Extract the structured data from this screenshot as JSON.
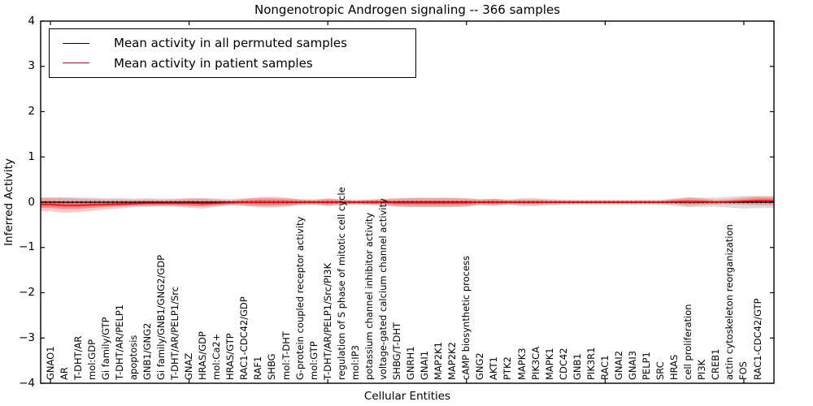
{
  "title": "Nongenotropic Androgen signaling -- 366 samples",
  "xlabel": "Cellular Entities",
  "ylabel": "Inferred Activity",
  "legend": {
    "entries": [
      {
        "label": "Mean activity in all permuted samples",
        "color": "#000000"
      },
      {
        "label": "Mean activity in patient samples",
        "color": "#ff0000"
      }
    ]
  },
  "colors": {
    "permuted_line": "#000000",
    "patient_line": "#ff0000",
    "permuted_band": "#b0b0b0",
    "patient_band": "#ff0000",
    "axis": "#000000"
  },
  "chart_data": {
    "type": "line",
    "title": "Nongenotropic Androgen signaling -- 366 samples",
    "xlabel": "Cellular Entities",
    "ylabel": "Inferred Activity",
    "ylim": [
      -4,
      4
    ],
    "yticks": [
      -4,
      -3,
      -2,
      -1,
      0,
      1,
      2,
      3,
      4
    ],
    "xtick_indices": [
      0,
      10,
      20,
      30,
      40,
      50
    ],
    "grid": false,
    "legend_position": "upper left",
    "categories": [
      "GNAO1",
      "AR",
      "T-DHT/AR",
      "mol:GDP",
      "Gi family/GTP",
      "T-DHT/AR/PELP1",
      "apoptosis",
      "GNB1/GNG2",
      "Gi family/GNB1/GNG2/GDP",
      "T-DHT/AR/PELP1/Src",
      "GNAZ",
      "HRAS/GDP",
      "mol:Ca2+",
      "HRAS/GTP",
      "RAC1-CDC42/GDP",
      "RAF1",
      "SHBG",
      "mol:T-DHT",
      "G-protein coupled receptor activity",
      "mol:GTP",
      "T-DHT/AR/PELP1/Src/PI3K",
      "regulation of S phase of mitotic cell cycle",
      "mol:IP3",
      "potassium channel inhibitor activity",
      "voltage-gated calcium channel activity",
      "SHBG/T-DHT",
      "GNRH1",
      "GNAI1",
      "MAP2K1",
      "MAP2K2",
      "cAMP biosynthetic process",
      "GNG2",
      "AKT1",
      "PTK2",
      "MAPK3",
      "PIK3CA",
      "MAPK1",
      "CDC42",
      "GNB1",
      "PIK3R1",
      "RAC1",
      "GNAI2",
      "GNAI3",
      "PELP1",
      "SRC",
      "HRAS",
      "cell proliferation",
      "PI3K",
      "CREB1",
      "actin cytoskeleton reorganization",
      "FOS",
      "RAC1-CDC42/GTP"
    ],
    "series": [
      {
        "name": "Mean activity in all permuted samples",
        "color": "#000000",
        "style": "solid-with-dots",
        "values": [
          0,
          0,
          0,
          0,
          0,
          0,
          0,
          0,
          0,
          0,
          0,
          0,
          0,
          0,
          0,
          0,
          0,
          0,
          0,
          0,
          0,
          0,
          0,
          0,
          0,
          0,
          0,
          0,
          0,
          0,
          0,
          0,
          0,
          0,
          0,
          0,
          0,
          0,
          0,
          0,
          0,
          0,
          0,
          0,
          0,
          0,
          0,
          0,
          0,
          0,
          0,
          0
        ],
        "band_halfwidth": [
          0.1,
          0.11,
          0.1,
          0.1,
          0.09,
          0.09,
          0.08,
          0.09,
          0.08,
          0.08,
          0.09,
          0.09,
          0.08,
          0.07,
          0.08,
          0.09,
          0.09,
          0.08,
          0.07,
          0.06,
          0.08,
          0.07,
          0.05,
          0.06,
          0.07,
          0.09,
          0.1,
          0.1,
          0.1,
          0.1,
          0.09,
          0.07,
          0.07,
          0.06,
          0.09,
          0.09,
          0.07,
          0.06,
          0.05,
          0.05,
          0.05,
          0.05,
          0.05,
          0.05,
          0.05,
          0.08,
          0.11,
          0.1,
          0.1,
          0.12,
          0.14,
          0.13
        ]
      },
      {
        "name": "Mean activity in patient samples",
        "color": "#ff0000",
        "style": "solid",
        "values": [
          -0.05,
          -0.07,
          -0.07,
          -0.06,
          -0.05,
          -0.04,
          -0.03,
          -0.02,
          -0.02,
          -0.02,
          -0.02,
          -0.03,
          -0.02,
          -0.01,
          0,
          0,
          0,
          0,
          0,
          0,
          0,
          0,
          0,
          0,
          0,
          -0.01,
          -0.01,
          -0.01,
          -0.01,
          -0.01,
          -0.01,
          0,
          0,
          0,
          0,
          0,
          0,
          0,
          0,
          0,
          0,
          0,
          0,
          0,
          0,
          0.01,
          0.01,
          0.01,
          0,
          0.01,
          0.02,
          0.03
        ],
        "band_halfwidth": [
          0.15,
          0.16,
          0.15,
          0.13,
          0.11,
          0.1,
          0.08,
          0.08,
          0.07,
          0.08,
          0.1,
          0.11,
          0.08,
          0.05,
          0.08,
          0.11,
          0.12,
          0.1,
          0.06,
          0.05,
          0.08,
          0.06,
          0.04,
          0.06,
          0.07,
          0.09,
          0.1,
          0.1,
          0.1,
          0.1,
          0.09,
          0.06,
          0.08,
          0.05,
          0.06,
          0.06,
          0.05,
          0.04,
          0.04,
          0.04,
          0.04,
          0.04,
          0.04,
          0.04,
          0.04,
          0.06,
          0.09,
          0.07,
          0.05,
          0.06,
          0.08,
          0.1
        ]
      }
    ]
  }
}
